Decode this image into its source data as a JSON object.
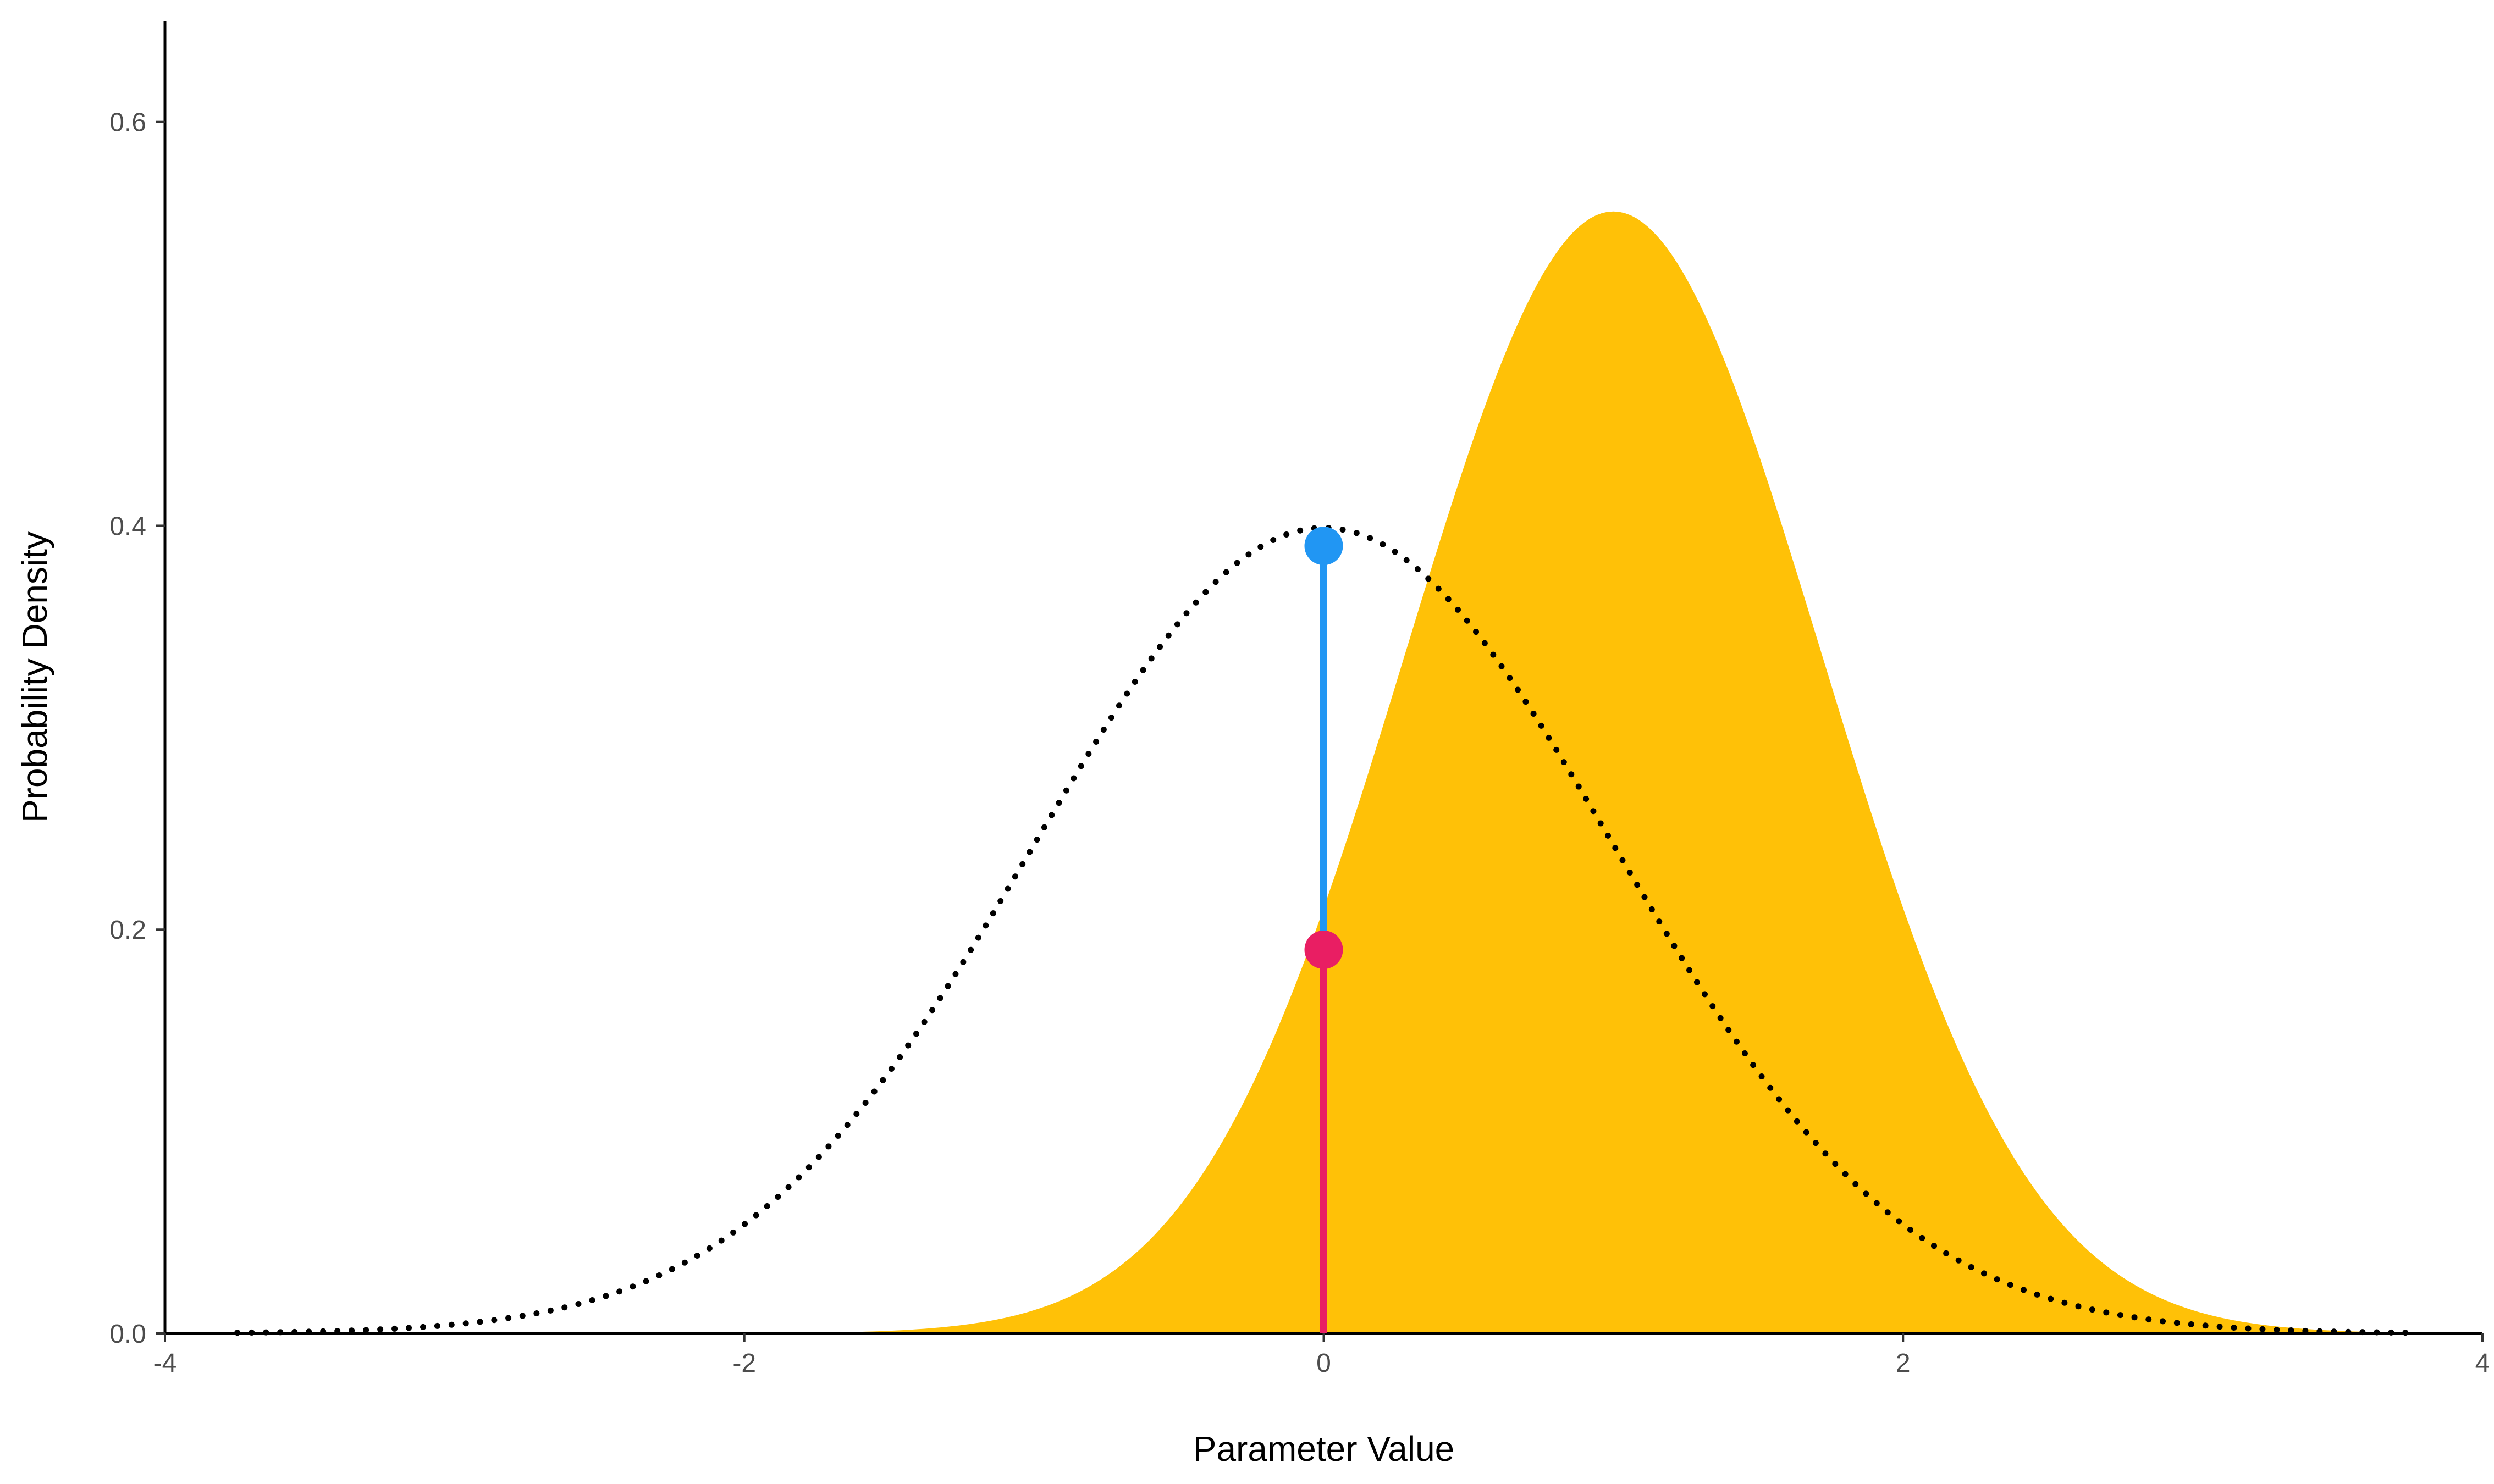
{
  "chart_data": {
    "type": "area",
    "title": "",
    "xlabel": "Parameter Value",
    "ylabel": "Probability Density",
    "xlim": [
      -4,
      4
    ],
    "ylim": [
      0,
      0.6
    ],
    "x_ticks": [
      -4,
      -2,
      0,
      2,
      4
    ],
    "x_tick_labels": [
      "-4",
      "-2",
      "0",
      "2",
      "4"
    ],
    "y_ticks": [
      0.0,
      0.2,
      0.4,
      0.6
    ],
    "y_tick_labels": [
      "0.0",
      "0.2",
      "0.4",
      "0.6"
    ],
    "grid": false,
    "series": [
      {
        "style": "filled area",
        "color": "#FFC107",
        "distribution": "normal",
        "mean": 1.0,
        "sd": 0.718,
        "peak_density": 0.556,
        "x_range": [
          -4,
          4
        ]
      },
      {
        "style": "dotted line",
        "color": "#000000",
        "distribution": "normal",
        "mean": 0.0,
        "sd": 1.0,
        "peak_density": 0.399,
        "x_range": [
          -3.75,
          3.75
        ]
      }
    ],
    "segments": [
      {
        "color": "#2196F3",
        "x": 0,
        "y_from": 0.19,
        "y_to": 0.39
      },
      {
        "color": "#E91E63",
        "x": 0,
        "y_from": 0.0,
        "y_to": 0.19
      }
    ],
    "points": [
      {
        "color": "#2196F3",
        "x": 0,
        "y": 0.39
      },
      {
        "color": "#E91E63",
        "x": 0,
        "y": 0.19
      }
    ]
  }
}
